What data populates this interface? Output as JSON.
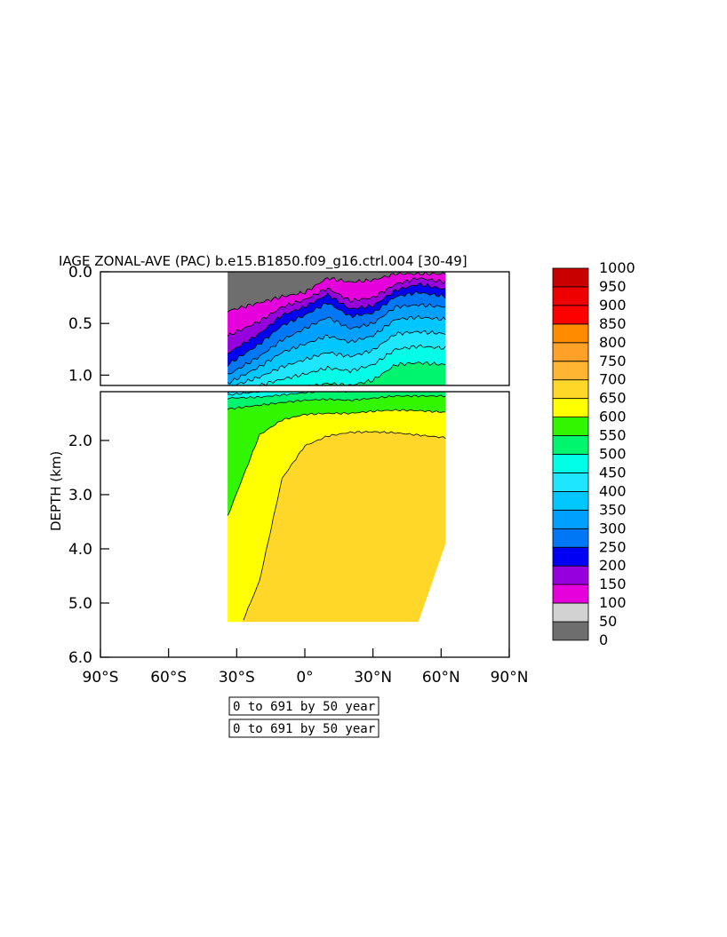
{
  "chart_data": {
    "type": "heatmap",
    "title": "IAGE ZONAL-AVE (PAC) b.e15.B1850.f09_g16.ctrl.004 [30-49]",
    "ylabel": "DEPTH (km)",
    "xlabel": "",
    "x_ticks": [
      "90°S",
      "60°S",
      "30°S",
      "0°",
      "30°N",
      "60°N",
      "90°N"
    ],
    "x_tick_values": [
      -90,
      -60,
      -30,
      0,
      30,
      60,
      90
    ],
    "y_ticks_top": [
      "0.0",
      "0.5",
      "1.0"
    ],
    "y_tick_values_top": [
      0.0,
      0.5,
      1.0
    ],
    "y_ticks_bottom": [
      "2.0",
      "3.0",
      "4.0",
      "5.0",
      "6.0"
    ],
    "y_tick_values_bottom": [
      2.0,
      3.0,
      4.0,
      5.0,
      6.0
    ],
    "xlim": [
      -90,
      90
    ],
    "ylim_top": [
      0.0,
      1.1
    ],
    "ylim_bottom": [
      1.1,
      6.0
    ],
    "levels": [
      0,
      50,
      100,
      150,
      200,
      250,
      300,
      350,
      400,
      450,
      500,
      550,
      600,
      650,
      700,
      750,
      800,
      850,
      900,
      950,
      1000
    ],
    "level_labels": [
      "0",
      "50",
      "100",
      "150",
      "200",
      "250",
      "300",
      "350",
      "400",
      "450",
      "500",
      "550",
      "600",
      "650",
      "700",
      "750",
      "800",
      "850",
      "900",
      "950",
      "1000"
    ],
    "level_colors": [
      "#6e6e6e",
      "#d2d2d2",
      "#e600dc",
      "#9600dc",
      "#0000f5",
      "#0078f5",
      "#00a0ff",
      "#00c8ff",
      "#1ee6ff",
      "#00ffe6",
      "#00f56e",
      "#32f500",
      "#ffff00",
      "#ffd728",
      "#ffb432",
      "#ffa028",
      "#ff8c00",
      "#ff0000",
      "#ee0000",
      "#c80000"
    ],
    "data_extent_lat": [
      -34,
      62
    ],
    "sections": [
      {
        "lat": -34,
        "bounds": [
          [
            0,
            0.0
          ],
          [
            100,
            0.38
          ],
          [
            150,
            0.62
          ],
          [
            200,
            0.79
          ],
          [
            250,
            0.9
          ],
          [
            300,
            1.0
          ],
          [
            350,
            1.08
          ],
          [
            400,
            1.12
          ],
          [
            450,
            1.16
          ],
          [
            500,
            1.22
          ],
          [
            550,
            1.42
          ],
          [
            600,
            3.4
          ],
          [
            650,
            6.0
          ]
        ],
        "bottom": 5.35
      },
      {
        "lat": -20,
        "bounds": [
          [
            0,
            0.0
          ],
          [
            100,
            0.3
          ],
          [
            150,
            0.48
          ],
          [
            200,
            0.6
          ],
          [
            250,
            0.7
          ],
          [
            300,
            0.82
          ],
          [
            350,
            0.92
          ],
          [
            400,
            1.02
          ],
          [
            450,
            1.1
          ],
          [
            500,
            1.2
          ],
          [
            550,
            1.35
          ],
          [
            600,
            1.9
          ],
          [
            650,
            4.6
          ]
        ],
        "bottom": 5.35
      },
      {
        "lat": -10,
        "bounds": [
          [
            0,
            0.0
          ],
          [
            100,
            0.24
          ],
          [
            150,
            0.34
          ],
          [
            200,
            0.42
          ],
          [
            250,
            0.52
          ],
          [
            300,
            0.66
          ],
          [
            350,
            0.78
          ],
          [
            400,
            0.92
          ],
          [
            450,
            1.04
          ],
          [
            500,
            1.16
          ],
          [
            550,
            1.3
          ],
          [
            600,
            1.62
          ],
          [
            650,
            2.7
          ]
        ],
        "bottom": 5.35
      },
      {
        "lat": 0,
        "bounds": [
          [
            0,
            0.0
          ],
          [
            100,
            0.2
          ],
          [
            150,
            0.27
          ],
          [
            200,
            0.34
          ],
          [
            250,
            0.42
          ],
          [
            300,
            0.55
          ],
          [
            350,
            0.7
          ],
          [
            400,
            0.85
          ],
          [
            450,
            0.99
          ],
          [
            500,
            1.12
          ],
          [
            550,
            1.26
          ],
          [
            600,
            1.52
          ],
          [
            650,
            2.1
          ]
        ],
        "bottom": 5.35
      },
      {
        "lat": 10,
        "bounds": [
          [
            0,
            0.0
          ],
          [
            100,
            0.06
          ],
          [
            150,
            0.16
          ],
          [
            200,
            0.22
          ],
          [
            250,
            0.3
          ],
          [
            300,
            0.44
          ],
          [
            350,
            0.62
          ],
          [
            400,
            0.78
          ],
          [
            450,
            0.93
          ],
          [
            500,
            1.08
          ],
          [
            550,
            1.24
          ],
          [
            600,
            1.5
          ],
          [
            650,
            1.92
          ]
        ],
        "bottom": 5.35
      },
      {
        "lat": 20,
        "bounds": [
          [
            0,
            0.0
          ],
          [
            100,
            0.1
          ],
          [
            150,
            0.28
          ],
          [
            200,
            0.36
          ],
          [
            250,
            0.43
          ],
          [
            300,
            0.55
          ],
          [
            350,
            0.68
          ],
          [
            400,
            0.82
          ],
          [
            450,
            0.96
          ],
          [
            500,
            1.1
          ],
          [
            550,
            1.26
          ],
          [
            600,
            1.5
          ],
          [
            650,
            1.85
          ]
        ],
        "bottom": 5.35
      },
      {
        "lat": 30,
        "bounds": [
          [
            0,
            0.0
          ],
          [
            100,
            0.08
          ],
          [
            150,
            0.25
          ],
          [
            200,
            0.33
          ],
          [
            250,
            0.4
          ],
          [
            300,
            0.5
          ],
          [
            350,
            0.62
          ],
          [
            400,
            0.76
          ],
          [
            450,
            0.9
          ],
          [
            500,
            1.05
          ],
          [
            550,
            1.22
          ],
          [
            600,
            1.46
          ],
          [
            650,
            1.84
          ]
        ],
        "bottom": 5.35
      },
      {
        "lat": 40,
        "bounds": [
          [
            0,
            0.0
          ],
          [
            100,
            0.02
          ],
          [
            150,
            0.12
          ],
          [
            200,
            0.18
          ],
          [
            250,
            0.24
          ],
          [
            300,
            0.34
          ],
          [
            350,
            0.46
          ],
          [
            400,
            0.6
          ],
          [
            450,
            0.75
          ],
          [
            500,
            0.9
          ],
          [
            550,
            1.18
          ],
          [
            600,
            1.44
          ],
          [
            650,
            1.86
          ]
        ],
        "bottom": 5.35
      },
      {
        "lat": 50,
        "bounds": [
          [
            0,
            0.0
          ],
          [
            100,
            0.02
          ],
          [
            150,
            0.06
          ],
          [
            200,
            0.12
          ],
          [
            250,
            0.2
          ],
          [
            300,
            0.32
          ],
          [
            350,
            0.44
          ],
          [
            400,
            0.58
          ],
          [
            450,
            0.72
          ],
          [
            500,
            0.88
          ],
          [
            550,
            1.18
          ],
          [
            600,
            1.45
          ],
          [
            650,
            1.9
          ]
        ],
        "bottom": 5.35
      },
      {
        "lat": 62,
        "bounds": [
          [
            0,
            0.0
          ],
          [
            100,
            0.02
          ],
          [
            150,
            0.1
          ],
          [
            200,
            0.17
          ],
          [
            250,
            0.24
          ],
          [
            300,
            0.34
          ],
          [
            350,
            0.46
          ],
          [
            400,
            0.6
          ],
          [
            450,
            0.74
          ],
          [
            500,
            0.9
          ],
          [
            550,
            1.18
          ],
          [
            600,
            1.48
          ],
          [
            650,
            1.95
          ]
        ],
        "bottom": 3.9
      }
    ]
  },
  "annotations": [
    "0 to 691 by 50 year",
    "0 to 691 by 50 year"
  ]
}
